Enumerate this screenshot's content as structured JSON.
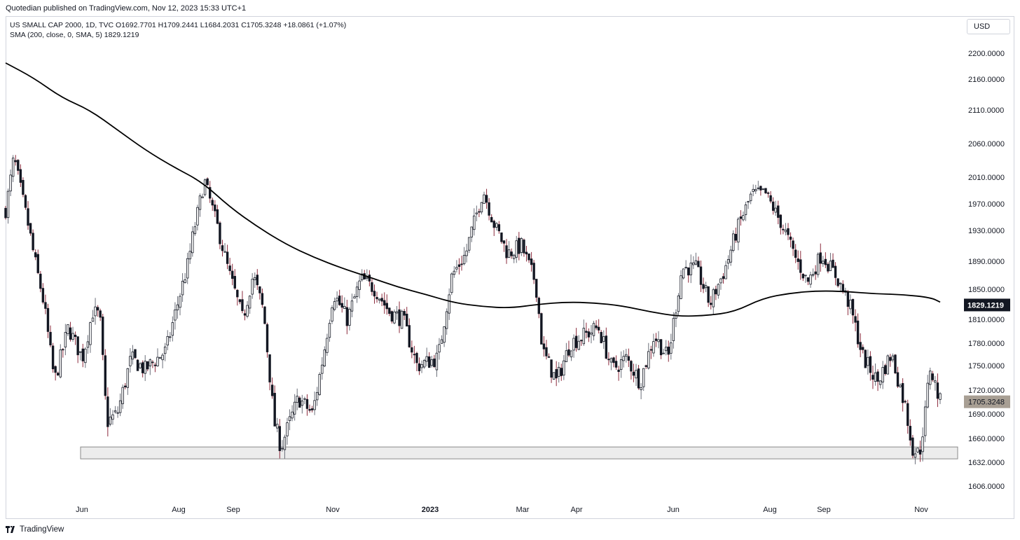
{
  "header": {
    "published_line": "Quotedian published on TradingView.com, Nov 12, 2023 15:33 UTC+1",
    "symbol_line": "US SMALL CAP 2000, 1D, TVC  O1692.7701  H1709.2441  L1684.2031  C1705.3248  +18.0861 (+1.07%)",
    "indicator_line": "SMA (200, close, 0, SMA, 5)  1829.1219",
    "currency": "USD"
  },
  "footer": {
    "brand": "TradingView"
  },
  "colors": {
    "candle_up": "#131722",
    "candle_down": "#131722",
    "wick": "#7a3b46",
    "sma_line": "#000000",
    "support_zone": "#ececec"
  },
  "chart_data": {
    "type": "candlestick",
    "symbol": "US SMALL CAP 2000",
    "interval": "1D",
    "ylim": [
      1590,
      2225
    ],
    "y_ticks": [
      "2200.0000",
      "2160.0000",
      "2110.0000",
      "2060.0000",
      "2010.0000",
      "1970.0000",
      "1930.0000",
      "1890.0000",
      "1850.0000",
      "1810.0000",
      "1780.0000",
      "1750.0000",
      "1720.0000",
      "1690.0000",
      "1660.0000",
      "1632.0000",
      "1606.0000"
    ],
    "x_ticks": [
      "Jun",
      "Aug",
      "Sep",
      "Nov",
      "2023",
      "Mar",
      "Apr",
      "Jun",
      "Aug",
      "Sep",
      "Nov"
    ],
    "last_price_label": "1705.3248",
    "sma_label": "1829.1219",
    "support_zone": [
      1636,
      1650
    ],
    "sma_path": [
      [
        0,
        2185
      ],
      [
        0.03,
        2162
      ],
      [
        0.06,
        2130
      ],
      [
        0.09,
        2110
      ],
      [
        0.12,
        2080
      ],
      [
        0.15,
        2050
      ],
      [
        0.18,
        2025
      ],
      [
        0.21,
        2003
      ],
      [
        0.24,
        1965
      ],
      [
        0.27,
        1935
      ],
      [
        0.3,
        1912
      ],
      [
        0.33,
        1895
      ],
      [
        0.36,
        1880
      ],
      [
        0.39,
        1867
      ],
      [
        0.42,
        1853
      ],
      [
        0.45,
        1843
      ],
      [
        0.48,
        1832
      ],
      [
        0.51,
        1827
      ],
      [
        0.54,
        1825
      ],
      [
        0.57,
        1830
      ],
      [
        0.6,
        1833
      ],
      [
        0.63,
        1832
      ],
      [
        0.66,
        1828
      ],
      [
        0.69,
        1820
      ],
      [
        0.72,
        1814
      ],
      [
        0.75,
        1815
      ],
      [
        0.78,
        1820
      ],
      [
        0.81,
        1838
      ],
      [
        0.84,
        1845
      ],
      [
        0.87,
        1848
      ],
      [
        0.9,
        1847
      ],
      [
        0.93,
        1844
      ],
      [
        0.96,
        1843
      ],
      [
        0.99,
        1839
      ],
      [
        1.0,
        1833
      ]
    ],
    "anchors": [
      [
        0.0,
        1960
      ],
      [
        0.012,
        2040
      ],
      [
        0.04,
        1900
      ],
      [
        0.055,
        1830
      ],
      [
        0.07,
        1730
      ],
      [
        0.09,
        1800
      ],
      [
        0.11,
        1760
      ],
      [
        0.125,
        1820
      ],
      [
        0.135,
        1815
      ],
      [
        0.145,
        1680
      ],
      [
        0.16,
        1690
      ],
      [
        0.18,
        1760
      ],
      [
        0.2,
        1745
      ],
      [
        0.23,
        1770
      ],
      [
        0.26,
        1880
      ],
      [
        0.285,
        2005
      ],
      [
        0.3,
        1950
      ],
      [
        0.32,
        1875
      ],
      [
        0.34,
        1810
      ],
      [
        0.355,
        1870
      ],
      [
        0.37,
        1820
      ],
      [
        0.385,
        1680
      ],
      [
        0.395,
        1650
      ],
      [
        0.42,
        1710
      ],
      [
        0.44,
        1690
      ],
      [
        0.455,
        1760
      ],
      [
        0.47,
        1845
      ],
      [
        0.49,
        1810
      ],
      [
        0.51,
        1865
      ],
      [
        0.53,
        1850
      ],
      [
        0.55,
        1820
      ],
      [
        0.57,
        1810
      ],
      [
        0.59,
        1750
      ],
      [
        0.62,
        1760
      ],
      [
        0.64,
        1870
      ],
      [
        0.66,
        1900
      ],
      [
        0.685,
        1990
      ],
      [
        0.7,
        1940
      ],
      [
        0.72,
        1900
      ],
      [
        0.74,
        1910
      ],
      [
        0.76,
        1860
      ],
      [
        0.77,
        1770
      ],
      [
        0.79,
        1730
      ],
      [
        0.81,
        1780
      ],
      [
        0.83,
        1790
      ],
      [
        0.85,
        1800
      ],
      [
        0.87,
        1745
      ],
      [
        0.89,
        1760
      ],
      [
        0.91,
        1730
      ],
      [
        0.93,
        1790
      ],
      [
        0.95,
        1760
      ],
      [
        0.97,
        1880
      ],
      [
        0.99,
        1880
      ],
      [
        1.01,
        1830
      ],
      [
        1.03,
        1875
      ],
      [
        1.05,
        1935
      ],
      [
        1.07,
        1985
      ],
      [
        1.09,
        1985
      ],
      [
        1.11,
        1945
      ],
      [
        1.13,
        1900
      ],
      [
        1.15,
        1860
      ],
      [
        1.17,
        1900
      ],
      [
        1.19,
        1870
      ],
      [
        1.21,
        1830
      ],
      [
        1.23,
        1760
      ],
      [
        1.25,
        1730
      ],
      [
        1.27,
        1765
      ],
      [
        1.29,
        1700
      ],
      [
        1.3,
        1650
      ],
      [
        1.31,
        1640
      ],
      [
        1.32,
        1700
      ],
      [
        1.325,
        1750
      ],
      [
        1.34,
        1705
      ]
    ]
  }
}
